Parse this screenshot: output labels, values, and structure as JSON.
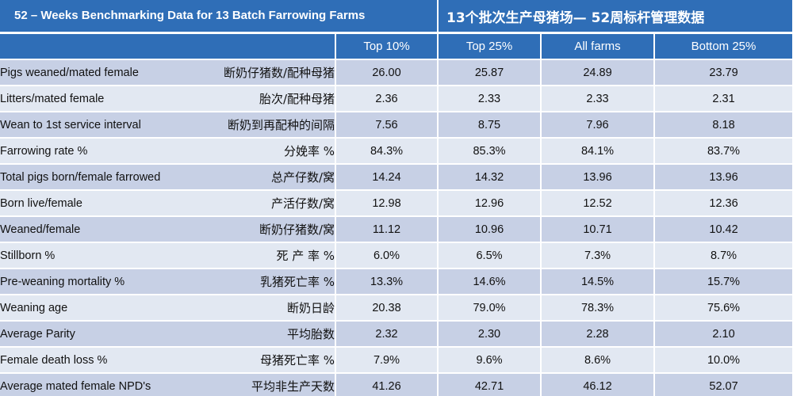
{
  "title": {
    "english": "52 – Weeks Benchmarking Data for 13 Batch Farrowing Farms",
    "chinese": "13个批次生产母猪场— 52周标杆管理数据"
  },
  "columns": [
    "Top 10%",
    "Top 25%",
    "All farms",
    "Bottom 25%"
  ],
  "rows": [
    {
      "label_en": "Pigs weaned/mated female",
      "label_zh": "断奶仔猪数/配种母猪",
      "values": [
        "26.00",
        "25.87",
        "24.89",
        "23.79"
      ]
    },
    {
      "label_en": "Litters/mated female",
      "label_zh": "胎次/配种母猪",
      "values": [
        "2.36",
        "2.33",
        "2.33",
        "2.31"
      ]
    },
    {
      "label_en": "Wean to 1st service interval",
      "label_zh": "断奶到再配种的间隔",
      "values": [
        "7.56",
        "8.75",
        "7.96",
        "8.18"
      ]
    },
    {
      "label_en": "Farrowing rate %",
      "label_zh": "分娩率 %",
      "values": [
        "84.3%",
        "85.3%",
        "84.1%",
        "83.7%"
      ]
    },
    {
      "label_en": "Total pigs born/female farrowed",
      "label_zh": "总产仔数/窝",
      "values": [
        "14.24",
        "14.32",
        "13.96",
        "13.96"
      ]
    },
    {
      "label_en": "Born live/female",
      "label_zh": "产活仔数/窝",
      "values": [
        "12.98",
        "12.96",
        "12.52",
        "12.36"
      ]
    },
    {
      "label_en": "Weaned/female",
      "label_zh": "断奶仔猪数/窝",
      "values": [
        "11.12",
        "10.96",
        "10.71",
        "10.42"
      ]
    },
    {
      "label_en": "Stillborn %",
      "label_zh": "死 产 率 %",
      "values": [
        "6.0%",
        "6.5%",
        "7.3%",
        "8.7%"
      ]
    },
    {
      "label_en": "Pre-weaning mortality %",
      "label_zh": "乳猪死亡率 %",
      "values": [
        "13.3%",
        "14.6%",
        "14.5%",
        "15.7%"
      ]
    },
    {
      "label_en": "Weaning age",
      "label_zh": "断奶日龄",
      "values": [
        "20.38",
        "79.0%",
        "78.3%",
        "75.6%"
      ]
    },
    {
      "label_en": "Average Parity",
      "label_zh": "平均胎数",
      "values": [
        "2.32",
        "2.30",
        "2.28",
        "2.10"
      ]
    },
    {
      "label_en": "Female death loss %",
      "label_zh": "母猪死亡率 %",
      "values": [
        "7.9%",
        "9.6%",
        "8.6%",
        "10.0%"
      ]
    },
    {
      "label_en": "Average mated female NPD's",
      "label_zh": "平均非生产天数",
      "values": [
        "41.26",
        "42.71",
        "46.12",
        "52.07"
      ]
    }
  ]
}
